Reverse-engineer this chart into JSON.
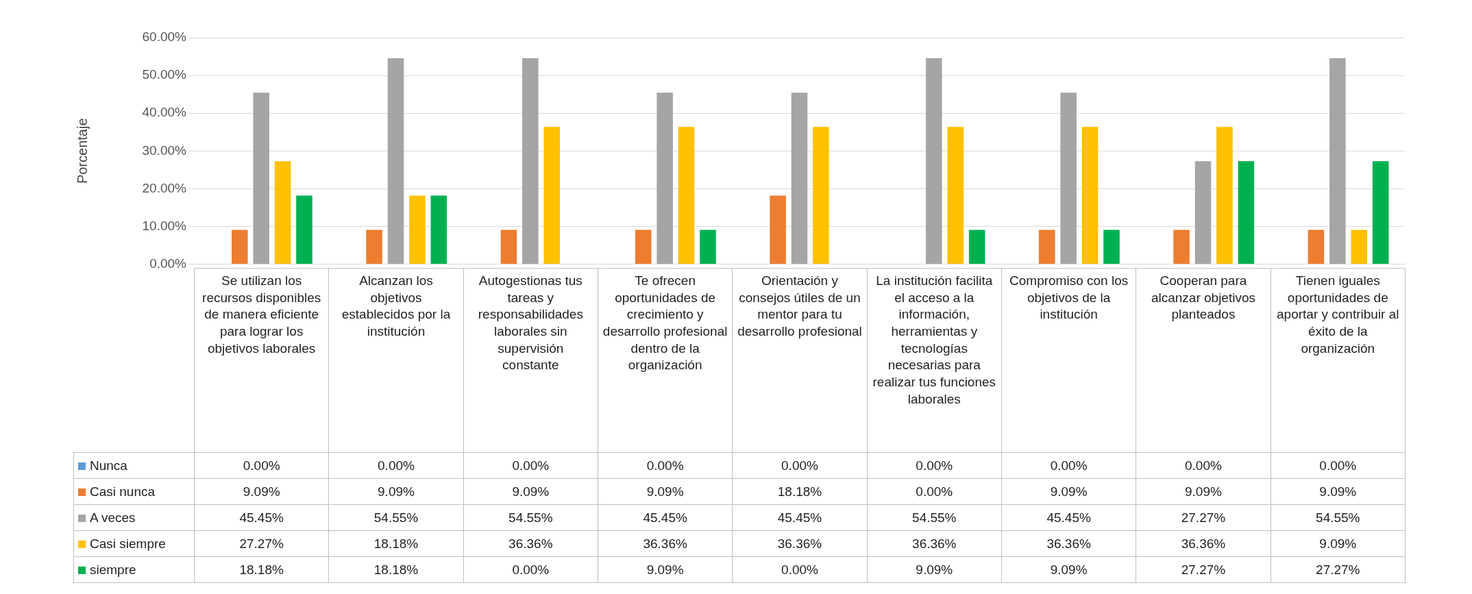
{
  "chart_data": {
    "type": "bar",
    "ylabel": "Porcentaje",
    "categories": [
      "Se utilizan los recursos disponibles de manera eficiente para lograr los objetivos laborales",
      "Alcanzan los objetivos establecidos por la institución",
      "Autogestionas tus tareas y responsabilidades laborales sin supervisión constante",
      "Te ofrecen oportunidades de crecimiento y desarrollo profesional dentro de la organización",
      "Orientación y consejos útiles de un mentor para tu desarrollo profesional",
      "La institución facilita el acceso a la información, herramientas y tecnologías necesarias para realizar tus funciones laborales",
      "Compromiso con los objetivos de la institución",
      "Cooperan para alcanzar objetivos planteados",
      "Tienen iguales oportunidades de aportar y contribuir al éxito de la organización"
    ],
    "series": [
      {
        "name": "Nunca",
        "color": "#5b9bd5",
        "values": [
          0,
          0,
          0,
          0,
          0,
          0,
          0,
          0,
          0
        ],
        "value_labels": [
          "0.00%",
          "0.00%",
          "0.00%",
          "0.00%",
          "0.00%",
          "0.00%",
          "0.00%",
          "0.00%",
          "0.00%"
        ]
      },
      {
        "name": "Casi nunca",
        "color": "#ed7d31",
        "values": [
          9.09,
          9.09,
          9.09,
          9.09,
          18.18,
          0,
          9.09,
          9.09,
          9.09
        ],
        "value_labels": [
          "9.09%",
          "9.09%",
          "9.09%",
          "9.09%",
          "18.18%",
          "0.00%",
          "9.09%",
          "9.09%",
          "9.09%"
        ]
      },
      {
        "name": "A veces",
        "color": "#a5a5a5",
        "values": [
          45.45,
          54.55,
          54.55,
          45.45,
          45.45,
          54.55,
          45.45,
          27.27,
          54.55
        ],
        "value_labels": [
          "45.45%",
          "54.55%",
          "54.55%",
          "45.45%",
          "45.45%",
          "54.55%",
          "45.45%",
          "27.27%",
          "54.55%"
        ]
      },
      {
        "name": "Casi siempre",
        "color": "#ffc000",
        "values": [
          27.27,
          18.18,
          36.36,
          36.36,
          36.36,
          36.36,
          36.36,
          36.36,
          9.09
        ],
        "value_labels": [
          "27.27%",
          "18.18%",
          "36.36%",
          "36.36%",
          "36.36%",
          "36.36%",
          "36.36%",
          "36.36%",
          "9.09%"
        ]
      },
      {
        "name": "siempre",
        "color": "#00b050",
        "values": [
          18.18,
          18.18,
          0,
          9.09,
          0,
          9.09,
          9.09,
          27.27,
          27.27
        ],
        "value_labels": [
          "18.18%",
          "18.18%",
          "0.00%",
          "9.09%",
          "0.00%",
          "9.09%",
          "9.09%",
          "27.27%",
          "27.27%"
        ]
      }
    ],
    "ylim": [
      0,
      60
    ],
    "yticks": [
      {
        "value": 0,
        "label": "0.00%"
      },
      {
        "value": 10,
        "label": "10.00%"
      },
      {
        "value": 20,
        "label": "20.00%"
      },
      {
        "value": 30,
        "label": "30.00%"
      },
      {
        "value": 40,
        "label": "40.00%"
      },
      {
        "value": 50,
        "label": "50.00%"
      },
      {
        "value": 60,
        "label": "60.00%"
      }
    ],
    "grid": "y",
    "legend": "bottom"
  }
}
